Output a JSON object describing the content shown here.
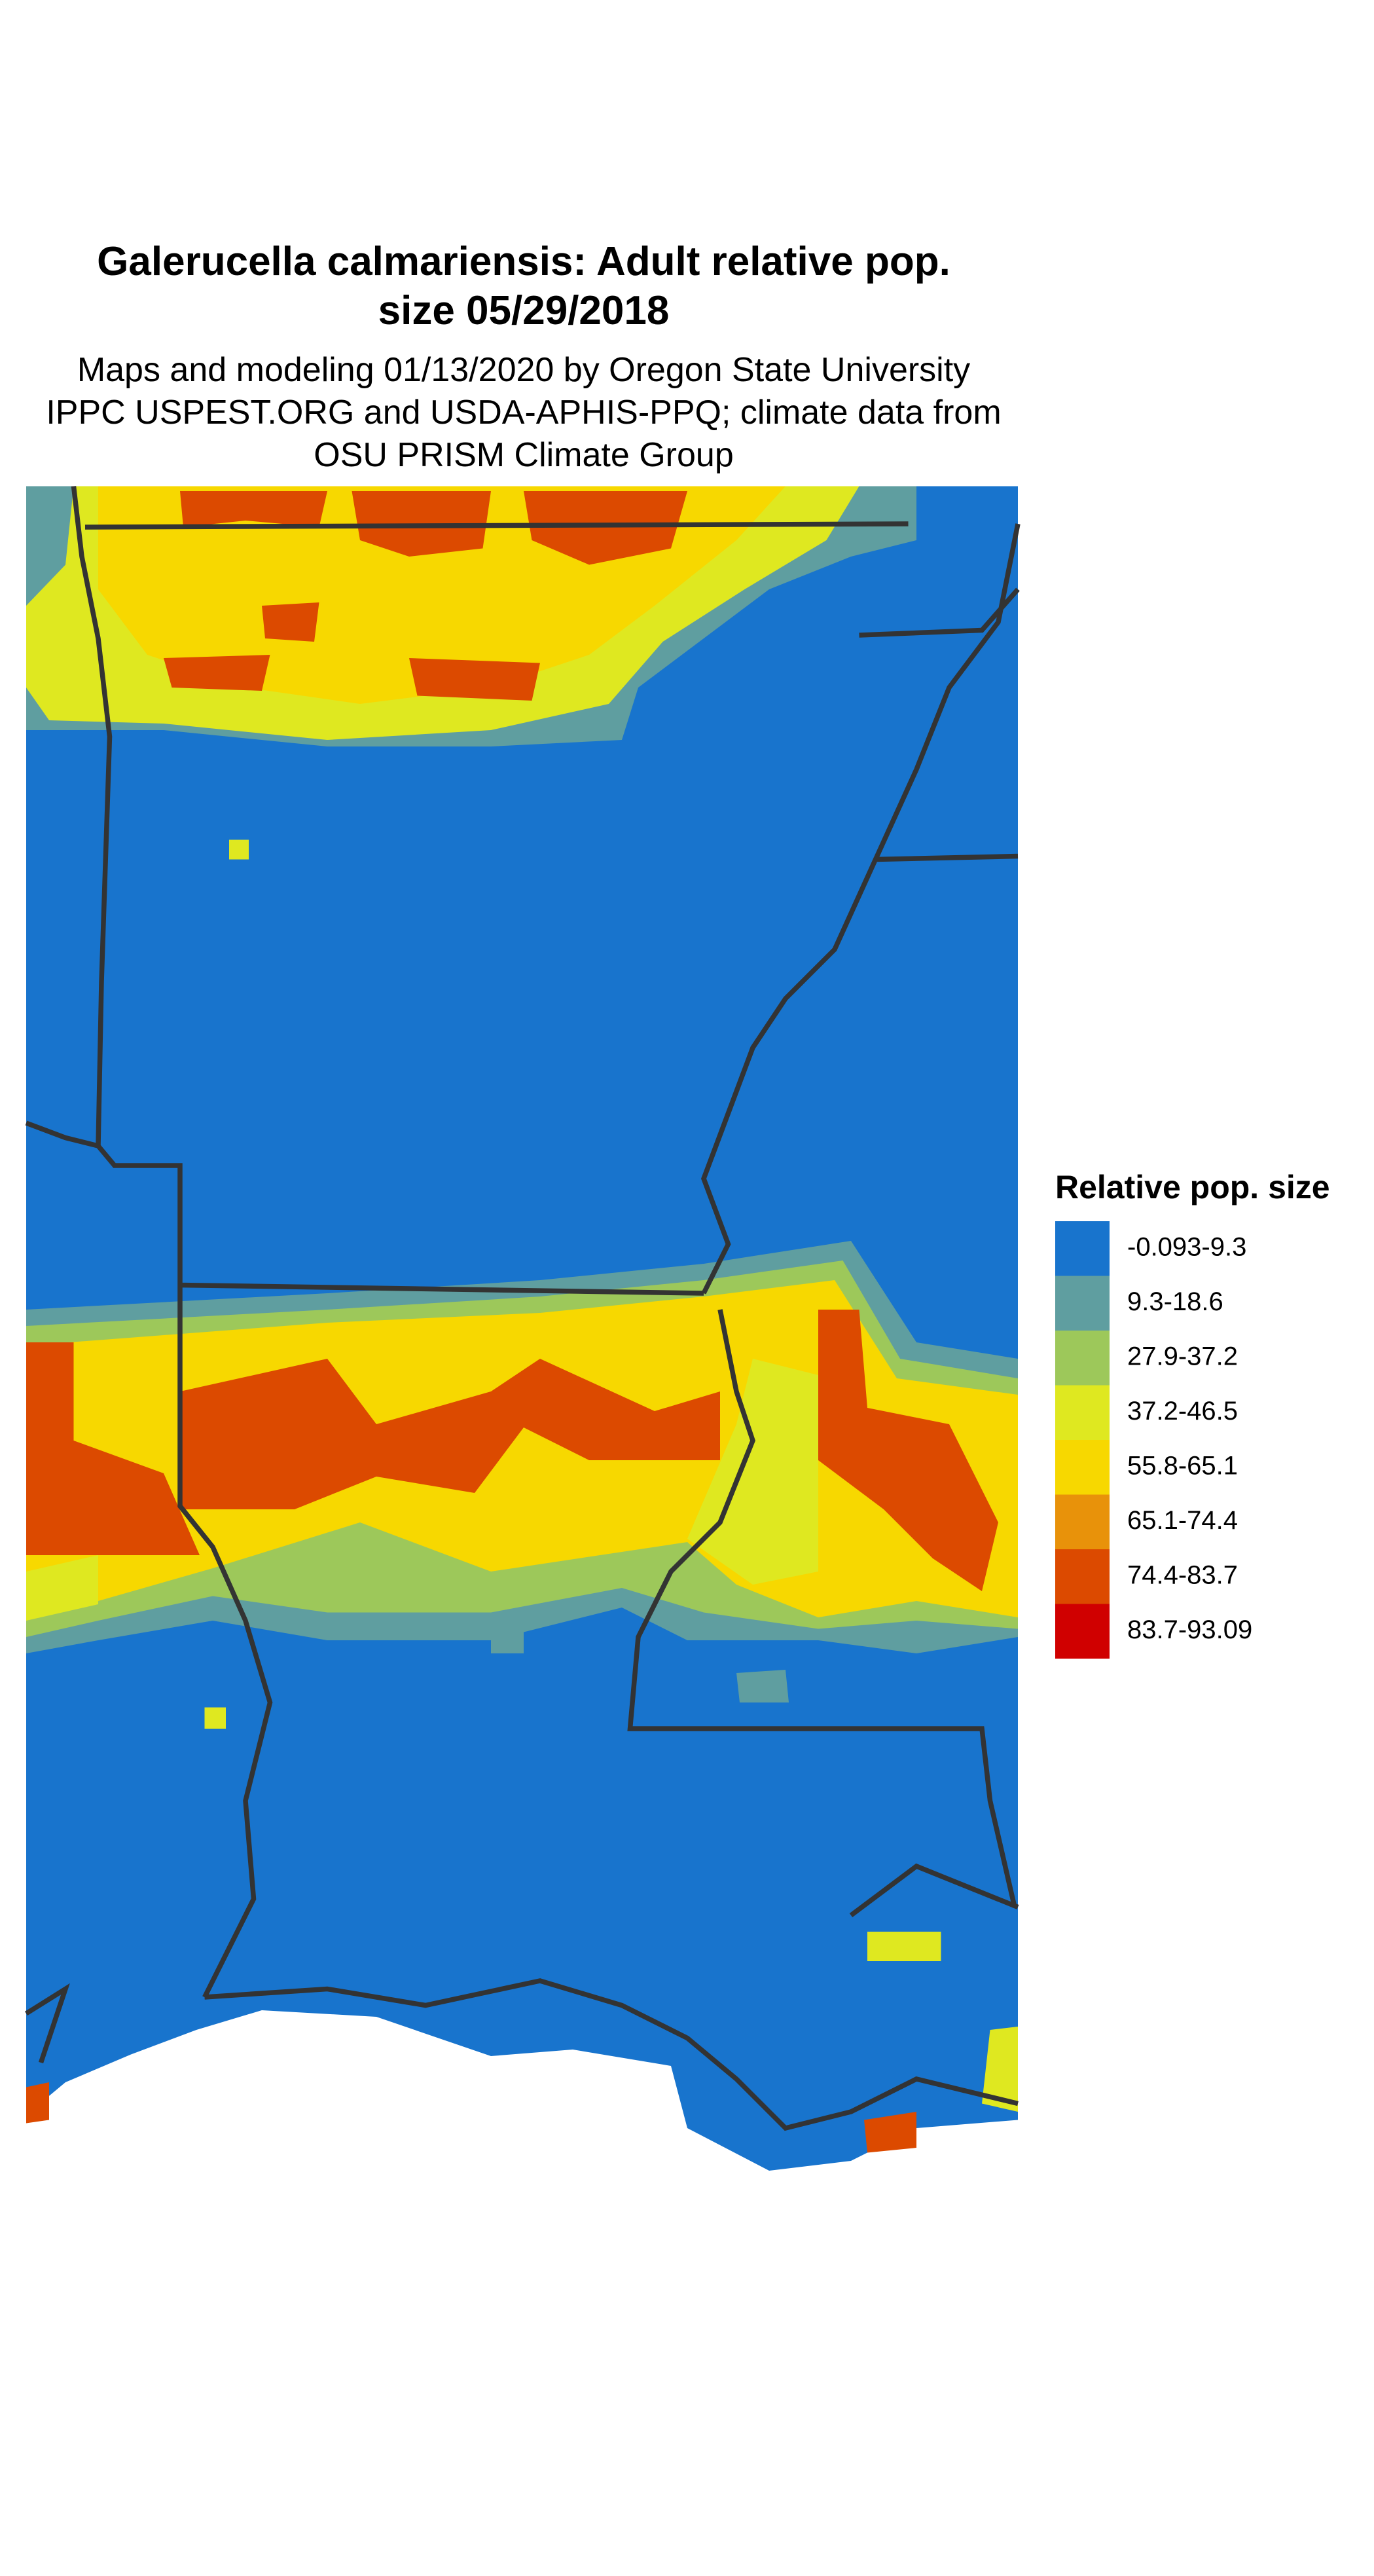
{
  "title": "Galerucella calmariensis: Adult relative pop. size 05/29/2018",
  "subtitle": [
    "Maps and modeling 01/13/2020 by Oregon State University",
    "IPPC USPEST.ORG and USDA-APHIS-PPQ; climate data from",
    "OSU PRISM Climate Group"
  ],
  "legend": {
    "title": "Relative pop. size",
    "items": [
      {
        "label": "-0.093-9.3",
        "color": "#1874cd"
      },
      {
        "label": "9.3-18.6",
        "color": "#5f9ea0"
      },
      {
        "label": "27.9-37.2",
        "color": "#9dc85a"
      },
      {
        "label": "37.2-46.5",
        "color": "#dfe820"
      },
      {
        "label": "55.8-65.1",
        "color": "#f7d800"
      },
      {
        "label": "65.1-74.4",
        "color": "#e8920a"
      },
      {
        "label": "74.4-83.7",
        "color": "#dc4a00"
      },
      {
        "label": "83.7-93.09",
        "color": "#d00000"
      }
    ]
  }
}
